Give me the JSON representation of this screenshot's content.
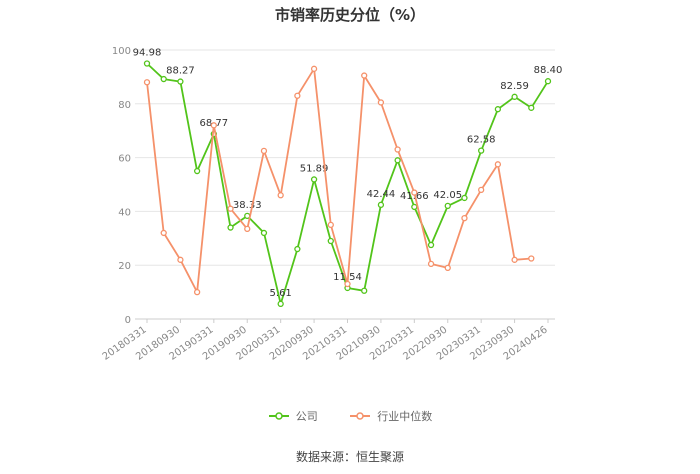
{
  "chart_data": {
    "type": "line",
    "title": "市销率历史分位（%）",
    "xlabel": "",
    "ylabel": "",
    "ylim": [
      0,
      100
    ],
    "yticks": [
      0,
      20,
      40,
      60,
      80,
      100
    ],
    "x_tick_labels": [
      "20180331",
      "20180930",
      "20190331",
      "20190930",
      "20200331",
      "20200930",
      "20210331",
      "20210930",
      "20220331",
      "20220930",
      "20230331",
      "20230930",
      "20240426"
    ],
    "x": [
      "20180331",
      "20180630",
      "20180930",
      "20181231",
      "20190331",
      "20190630",
      "20190930",
      "20191231",
      "20200331",
      "20200630",
      "20200930",
      "20201231",
      "20210331",
      "20210630",
      "20210930",
      "20211231",
      "20220331",
      "20220630",
      "20220930",
      "20221231",
      "20230331",
      "20230630",
      "20230930",
      "20231231",
      "20240426"
    ],
    "series": [
      {
        "name": "公司",
        "color": "#52c41a",
        "values": [
          94.98,
          89.2,
          88.27,
          55.0,
          68.77,
          34.0,
          38.33,
          32.0,
          5.61,
          26.0,
          51.89,
          29.0,
          11.54,
          10.5,
          42.44,
          59.0,
          41.66,
          27.5,
          42.05,
          45.0,
          62.58,
          78.0,
          82.59,
          78.5,
          88.4
        ],
        "labels": {
          "0": "94.98",
          "2": "88.27",
          "4": "68.77",
          "6": "38.33",
          "8": "5.61",
          "10": "51.89",
          "12": "11.54",
          "14": "42.44",
          "16": "41.66",
          "18": "42.05",
          "20": "62.58",
          "22": "82.59",
          "24": "88.40"
        }
      },
      {
        "name": "行业中位数",
        "color": "#f5916a",
        "values": [
          88.0,
          32.0,
          22.0,
          10.0,
          72.0,
          41.0,
          33.5,
          62.5,
          46.0,
          83.0,
          93.0,
          35.0,
          13.0,
          90.5,
          80.5,
          63.0,
          47.0,
          20.5,
          19.0,
          37.5,
          48.0,
          57.5,
          22.0,
          22.5,
          null
        ]
      }
    ],
    "grid": true,
    "legend_position": "bottom"
  },
  "legend": {
    "company": "公司",
    "industry": "行业中位数"
  },
  "source": "数据来源：恒生聚源"
}
